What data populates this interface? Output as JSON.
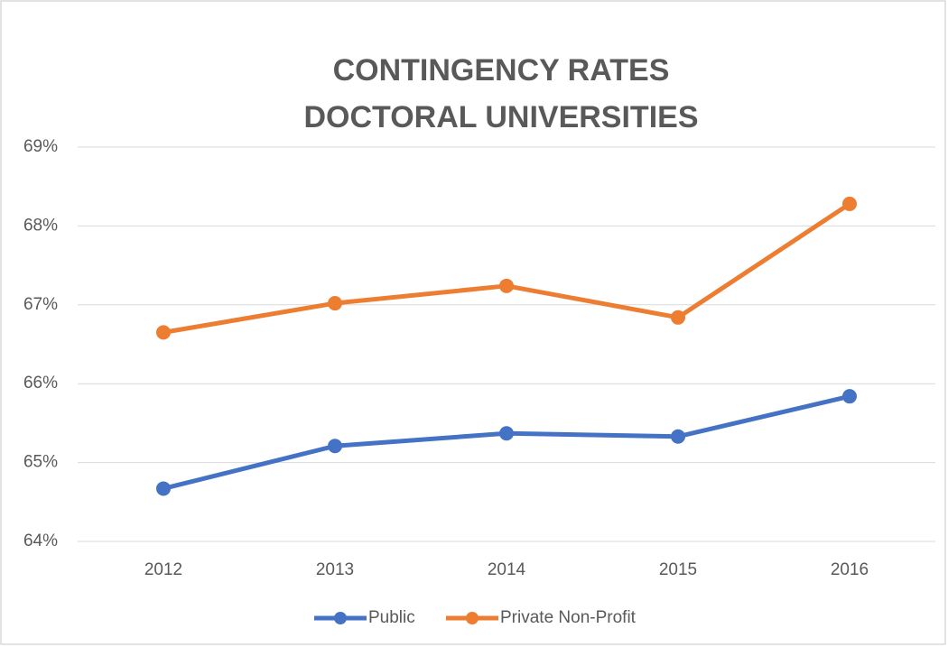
{
  "chart_data": {
    "type": "line",
    "title": "CONTINGENCY RATES",
    "subtitle": "DOCTORAL UNIVERSITIES",
    "categories": [
      "2012",
      "2013",
      "2014",
      "2015",
      "2016"
    ],
    "series": [
      {
        "name": "Public",
        "color": "#4472c4",
        "values": [
          64.67,
          65.21,
          65.37,
          65.33,
          65.84
        ]
      },
      {
        "name": "Private Non-Profit",
        "color": "#ed7d31",
        "values": [
          66.65,
          67.02,
          67.24,
          66.84,
          68.28
        ]
      }
    ],
    "ylim": [
      64,
      69
    ],
    "yticks": [
      {
        "value": 64,
        "label": "64%"
      },
      {
        "value": 65,
        "label": "65%"
      },
      {
        "value": 66,
        "label": "66%"
      },
      {
        "value": 67,
        "label": "67%"
      },
      {
        "value": 68,
        "label": "68%"
      },
      {
        "value": 69,
        "label": "69%"
      }
    ],
    "grid": true,
    "legend": "bottom"
  }
}
